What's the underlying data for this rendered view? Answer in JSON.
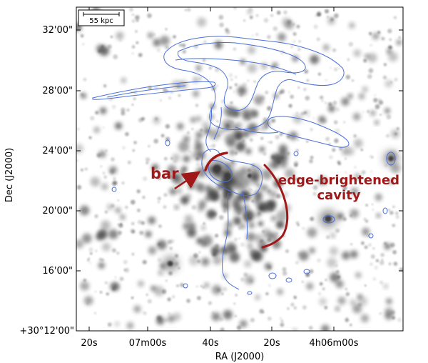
{
  "axes": {
    "xlabel": "RA (J2000)",
    "ylabel": "Dec (J2000)",
    "x_ticks": [
      "20s",
      "07m00s",
      "40s",
      "20s",
      "4h06m00s"
    ],
    "y_ticks": [
      "32'00\"",
      "28'00\"",
      "24'00\"",
      "20'00\"",
      "16'00\"",
      "+30°12'00\""
    ]
  },
  "scalebar": {
    "label": "55 kpc"
  },
  "annotations": {
    "bar": "bar",
    "cavity_line1": "edge-brightened",
    "cavity_line2": "cavity"
  },
  "colors": {
    "contour": "#4a6fd8",
    "annotation": "#a01818",
    "source": "#3a3a3a"
  }
}
